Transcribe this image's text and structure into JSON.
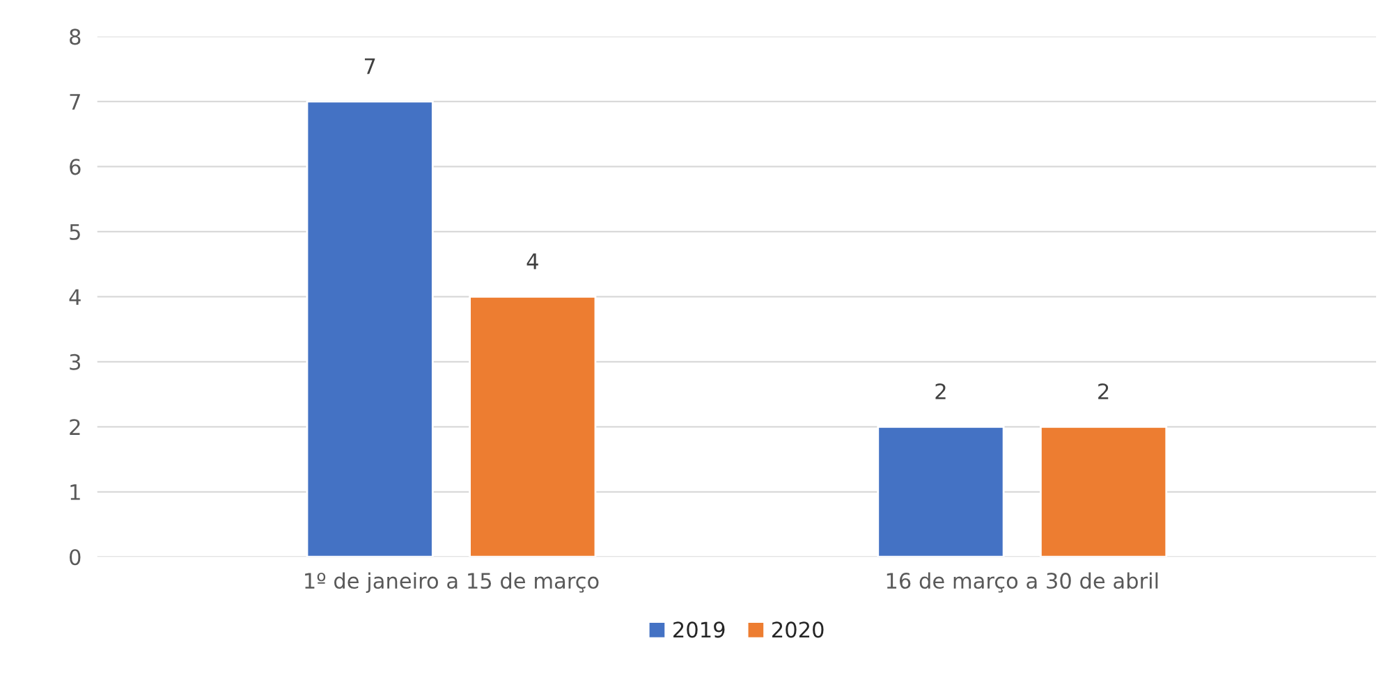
{
  "chart_data": {
    "type": "bar",
    "categories": [
      "1º de janeiro a 15 de março",
      "16 de março a 30 de abril"
    ],
    "series": [
      {
        "name": "2019",
        "color": "#4472c4",
        "values": [
          7,
          2
        ]
      },
      {
        "name": "2020",
        "color": "#ed7d31",
        "values": [
          4,
          2
        ]
      }
    ],
    "ylim": [
      0,
      8
    ],
    "yticks": [
      0,
      1,
      2,
      3,
      4,
      5,
      6,
      7,
      8
    ],
    "grid": "y",
    "data_labels": true,
    "legend": "bottom"
  }
}
